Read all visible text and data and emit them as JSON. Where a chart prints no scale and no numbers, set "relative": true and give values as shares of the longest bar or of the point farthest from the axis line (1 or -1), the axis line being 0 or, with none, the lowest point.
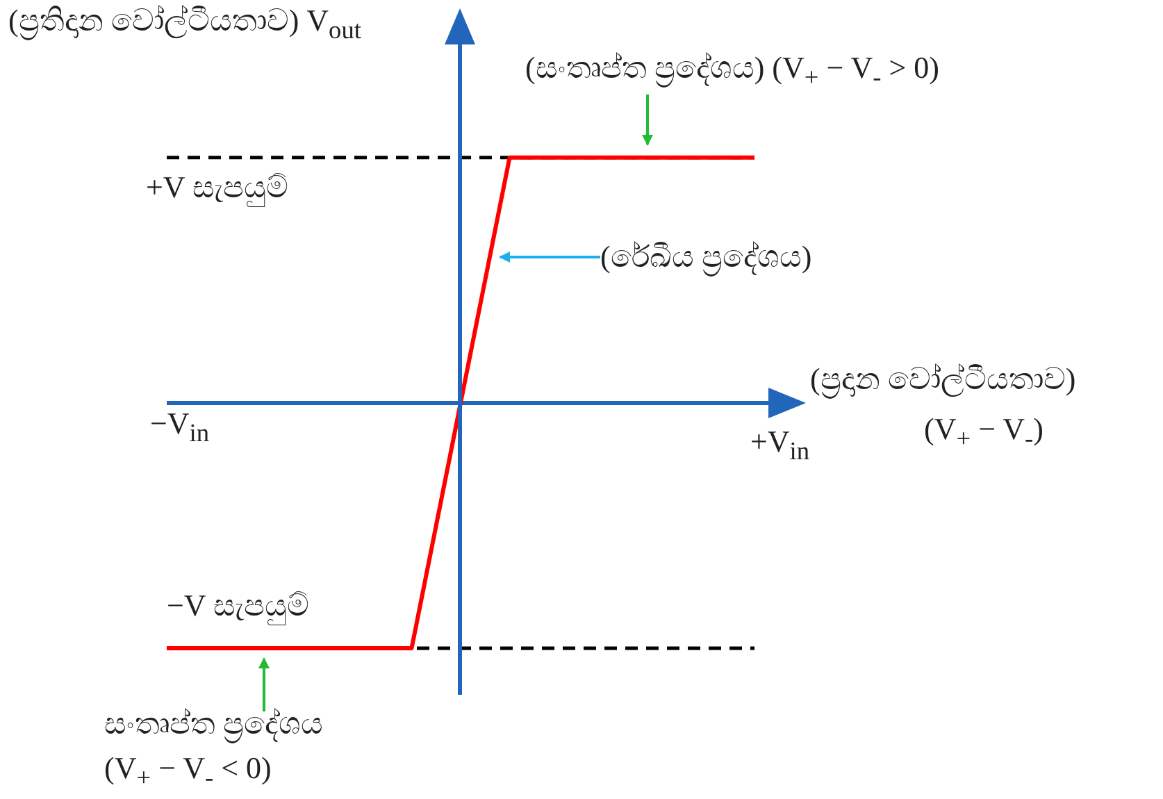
{
  "chart_data": {
    "type": "line",
    "relative": true,
    "ylabel": "(ප්‍රතිදාන වෝල්ටීයතාව) V$_{out}$",
    "xlabel": "(ප්‍රදාන වෝල්ටීයතාව) (V$_{+}$ − V$_{-}$)",
    "categories": [
      null,
      null,
      null,
      null,
      null,
      null,
      null,
      null,
      null,
      null,
      null,
      null,
      null,
      null,
      null,
      null,
      null,
      null,
      null,
      null,
      null,
      null,
      null,
      null,
      null
    ],
    "series": [
      {
        "color": "#ff0000",
        "values": [
          -1,
          -1,
          -1,
          -1,
          -1,
          -1,
          -1,
          -1,
          -1,
          -1,
          -1,
          -0.5,
          0,
          0.5,
          1,
          1,
          1,
          1,
          1,
          1,
          1,
          1,
          1,
          1,
          1
        ]
      }
    ],
    "ref_lines": [
      {
        "axis": "y",
        "value": 0,
        "color": "#2266bb",
        "line_style": "solid"
      },
      {
        "axis": "y",
        "value": 1,
        "label": "+V  සැපයුම්",
        "color": "#000000",
        "line_style": "dashed"
      },
      {
        "axis": "y",
        "value": -1,
        "label": "−V  සැපයුම්",
        "color": "#000000",
        "line_style": "dashed"
      }
    ],
    "annotations": [
      "(සංතෘප්ත ප්‍රදේශය) (V$_{+}$ − V$_{-}$ > 0)",
      "(රේඛීය ප්‍රදේශය)",
      "+V$_{in}$",
      "−V$_{in}$",
      "සංතෘප්ත ප්‍රදේශය",
      "(V$_{+}$ − V$_{-}$ < 0)"
    ],
    "grid": false,
    "legend": false,
    "marker": "none",
    "line_style": "solid"
  }
}
